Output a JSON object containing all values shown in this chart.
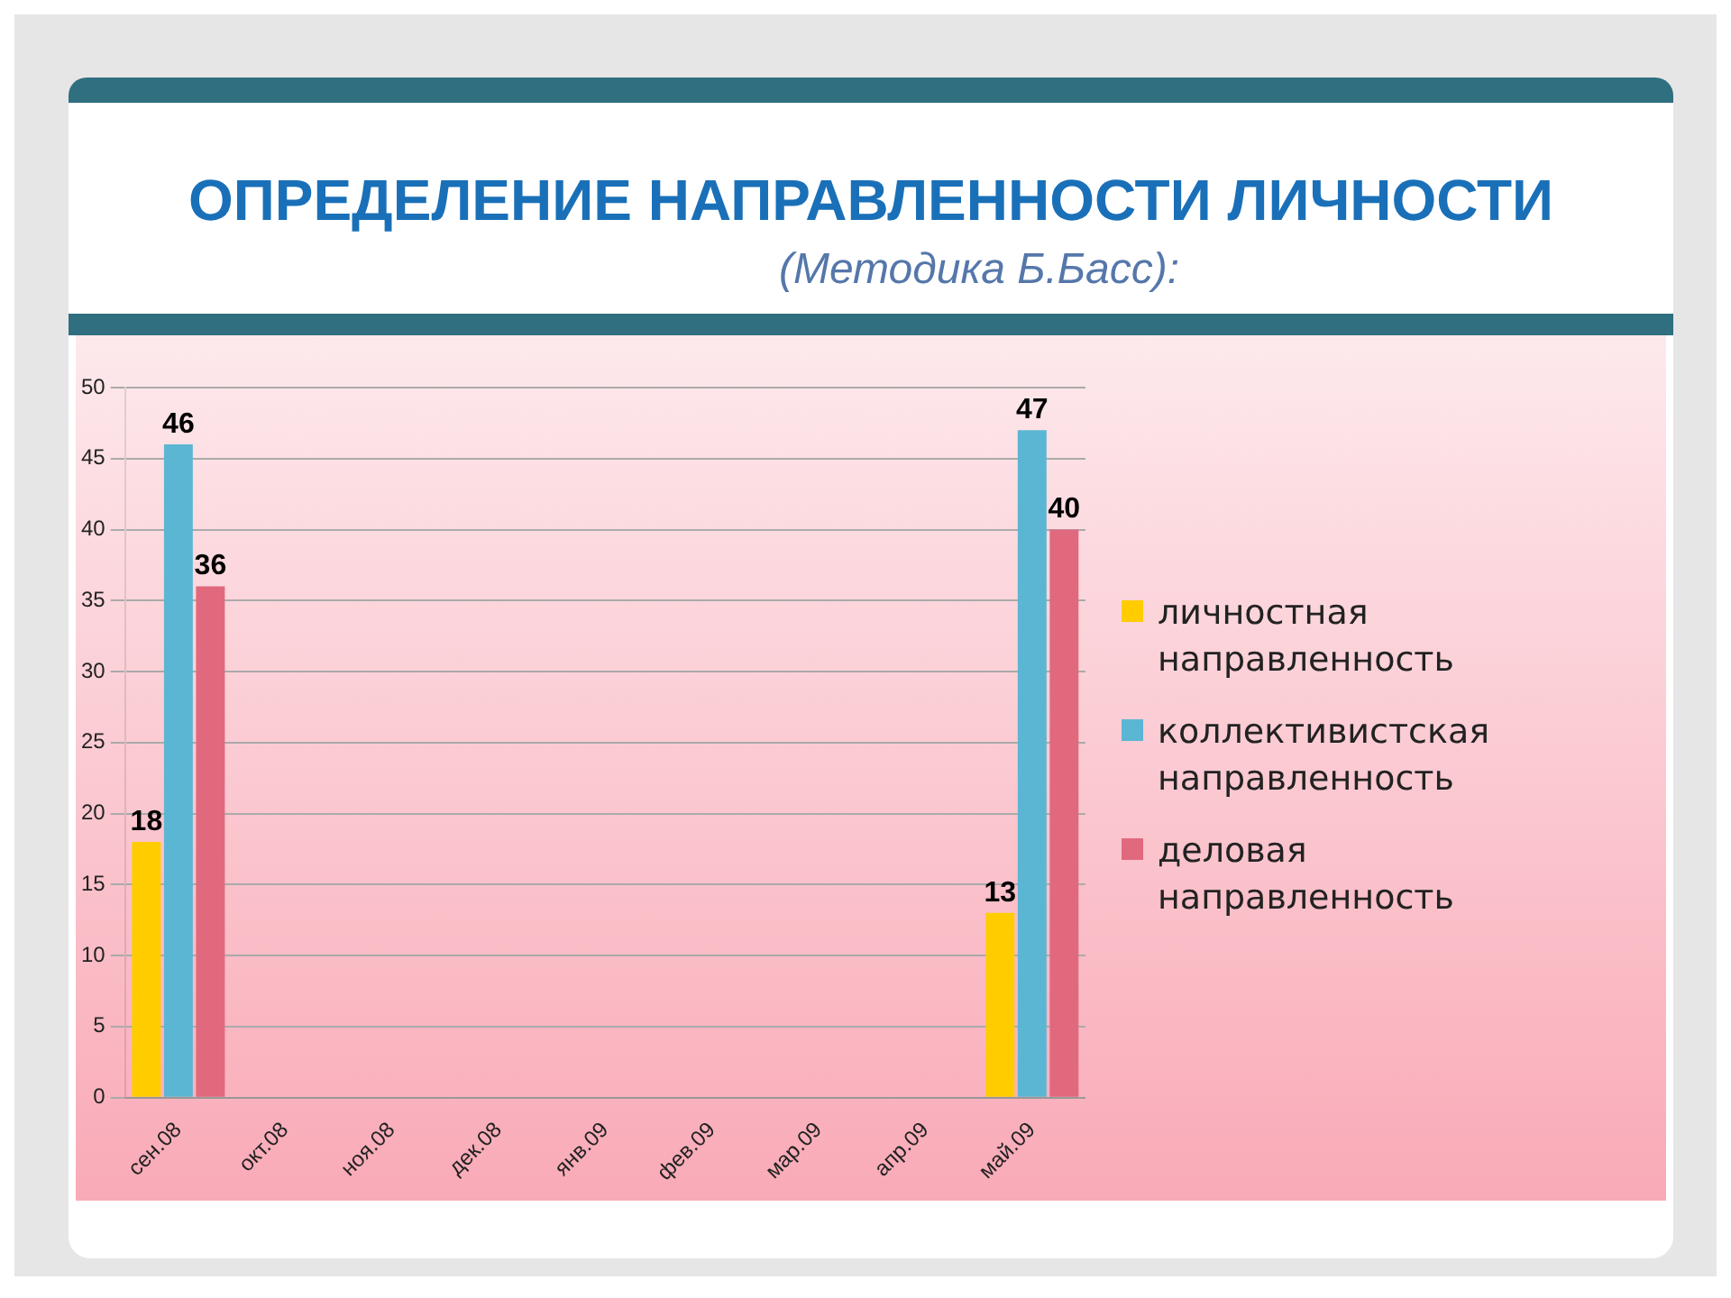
{
  "chart_data": {
    "type": "bar",
    "title": "ОПРЕДЕЛЕНИЕ НАПРАВЛЕННОСТИ ЛИЧНОСТИ",
    "subtitle": "(Методика Б.Басс):",
    "categories": [
      "сен.08",
      "окт.08",
      "ноя.08",
      "дек.08",
      "янв.09",
      "фев.09",
      "мар.09",
      "апр.09",
      "май.09"
    ],
    "series": [
      {
        "name": "личностная направленность",
        "color": "#ffcc00",
        "values": [
          18,
          null,
          null,
          null,
          null,
          null,
          null,
          null,
          13
        ]
      },
      {
        "name": "коллективистская направленность",
        "color": "#5bb6d3",
        "values": [
          46,
          null,
          null,
          null,
          null,
          null,
          null,
          null,
          47
        ]
      },
      {
        "name": "деловая направленность",
        "color": "#e0697e",
        "values": [
          36,
          null,
          null,
          null,
          null,
          null,
          null,
          null,
          40
        ]
      }
    ],
    "ylim": [
      0,
      50
    ],
    "yticks": [
      0,
      5,
      10,
      15,
      20,
      25,
      30,
      35,
      40,
      45,
      50
    ],
    "grid": "y",
    "legend": "right",
    "data_labels": true
  }
}
